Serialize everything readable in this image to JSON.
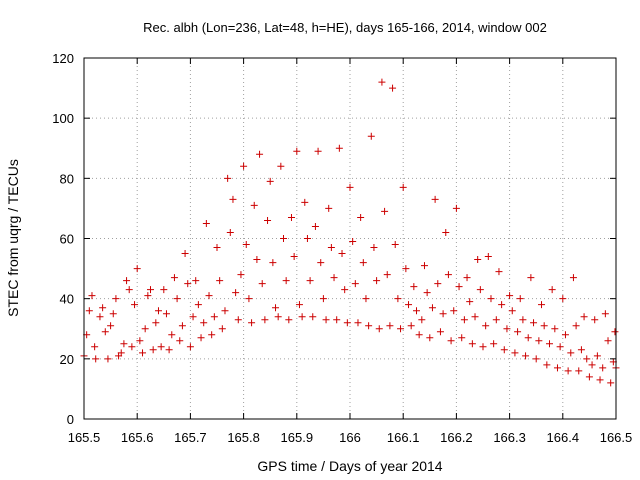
{
  "chart_data": {
    "type": "scatter",
    "title": "Rec. albh (Lon=236, Lat=48, h=HE), days 165-166, 2014, window 002",
    "xlabel": "GPS time / Days of year 2014",
    "ylabel": "STEC from uqrg / TECUs",
    "xlim": [
      165.5,
      166.5
    ],
    "ylim": [
      0,
      120
    ],
    "grid": true,
    "marker": "plus",
    "color": "#cc0000",
    "x_ticks": [
      {
        "value": 165.5,
        "label": "165.5"
      },
      {
        "value": 165.6,
        "label": "165.6"
      },
      {
        "value": 165.7,
        "label": "165.7"
      },
      {
        "value": 165.8,
        "label": "165.8"
      },
      {
        "value": 165.9,
        "label": "165.9"
      },
      {
        "value": 166.0,
        "label": "166"
      },
      {
        "value": 166.1,
        "label": "166.1"
      },
      {
        "value": 166.2,
        "label": "166.2"
      },
      {
        "value": 166.3,
        "label": "166.3"
      },
      {
        "value": 166.4,
        "label": "166.4"
      },
      {
        "value": 166.5,
        "label": "166.5"
      }
    ],
    "y_ticks": [
      {
        "value": 0,
        "label": "0"
      },
      {
        "value": 20,
        "label": "20"
      },
      {
        "value": 40,
        "label": "40"
      },
      {
        "value": 60,
        "label": "60"
      },
      {
        "value": 80,
        "label": "80"
      },
      {
        "value": 100,
        "label": "100"
      },
      {
        "value": 120,
        "label": "120"
      }
    ],
    "points": [
      [
        165.5,
        21
      ],
      [
        165.505,
        28
      ],
      [
        165.51,
        36
      ],
      [
        165.515,
        41
      ],
      [
        165.52,
        24
      ],
      [
        165.522,
        20
      ],
      [
        165.53,
        34
      ],
      [
        165.535,
        37
      ],
      [
        165.54,
        29
      ],
      [
        165.545,
        20
      ],
      [
        165.55,
        31
      ],
      [
        165.555,
        35
      ],
      [
        165.56,
        40
      ],
      [
        165.565,
        21
      ],
      [
        165.57,
        22
      ],
      [
        165.575,
        25
      ],
      [
        165.58,
        46
      ],
      [
        165.585,
        43
      ],
      [
        165.59,
        24
      ],
      [
        165.595,
        38
      ],
      [
        165.6,
        50
      ],
      [
        165.605,
        26
      ],
      [
        165.61,
        22
      ],
      [
        165.615,
        30
      ],
      [
        165.62,
        41
      ],
      [
        165.625,
        43
      ],
      [
        165.63,
        23
      ],
      [
        165.635,
        32
      ],
      [
        165.64,
        36
      ],
      [
        165.645,
        24
      ],
      [
        165.65,
        43
      ],
      [
        165.655,
        35
      ],
      [
        165.66,
        23
      ],
      [
        165.665,
        28
      ],
      [
        165.67,
        47
      ],
      [
        165.675,
        40
      ],
      [
        165.68,
        26
      ],
      [
        165.685,
        31
      ],
      [
        165.69,
        55
      ],
      [
        165.695,
        45
      ],
      [
        165.7,
        24
      ],
      [
        165.705,
        34
      ],
      [
        165.71,
        46
      ],
      [
        165.715,
        38
      ],
      [
        165.72,
        27
      ],
      [
        165.725,
        32
      ],
      [
        165.73,
        65
      ],
      [
        165.735,
        41
      ],
      [
        165.74,
        28
      ],
      [
        165.745,
        34
      ],
      [
        165.75,
        57
      ],
      [
        165.755,
        46
      ],
      [
        165.76,
        30
      ],
      [
        165.765,
        36
      ],
      [
        165.77,
        80
      ],
      [
        165.775,
        62
      ],
      [
        165.78,
        73
      ],
      [
        165.785,
        42
      ],
      [
        165.79,
        33
      ],
      [
        165.795,
        48
      ],
      [
        165.8,
        84
      ],
      [
        165.805,
        58
      ],
      [
        165.81,
        40
      ],
      [
        165.815,
        32
      ],
      [
        165.82,
        71
      ],
      [
        165.825,
        53
      ],
      [
        165.83,
        88
      ],
      [
        165.835,
        45
      ],
      [
        165.84,
        33
      ],
      [
        165.845,
        66
      ],
      [
        165.85,
        79
      ],
      [
        165.855,
        52
      ],
      [
        165.86,
        37
      ],
      [
        165.865,
        34
      ],
      [
        165.87,
        84
      ],
      [
        165.875,
        60
      ],
      [
        165.88,
        46
      ],
      [
        165.885,
        33
      ],
      [
        165.89,
        67
      ],
      [
        165.895,
        54
      ],
      [
        165.9,
        89
      ],
      [
        165.905,
        38
      ],
      [
        165.91,
        34
      ],
      [
        165.915,
        72
      ],
      [
        165.92,
        60
      ],
      [
        165.925,
        46
      ],
      [
        165.93,
        34
      ],
      [
        165.935,
        64
      ],
      [
        165.94,
        89
      ],
      [
        165.945,
        52
      ],
      [
        165.95,
        40
      ],
      [
        165.955,
        33
      ],
      [
        165.96,
        70
      ],
      [
        165.965,
        57
      ],
      [
        165.97,
        47
      ],
      [
        165.975,
        33
      ],
      [
        165.98,
        90
      ],
      [
        165.985,
        55
      ],
      [
        165.99,
        43
      ],
      [
        165.995,
        32
      ],
      [
        166.0,
        77
      ],
      [
        166.005,
        59
      ],
      [
        166.01,
        45
      ],
      [
        166.015,
        32
      ],
      [
        166.02,
        67
      ],
      [
        166.025,
        52
      ],
      [
        166.03,
        40
      ],
      [
        166.035,
        31
      ],
      [
        166.04,
        94
      ],
      [
        166.045,
        57
      ],
      [
        166.05,
        46
      ],
      [
        166.055,
        30
      ],
      [
        166.06,
        112
      ],
      [
        166.065,
        69
      ],
      [
        166.07,
        48
      ],
      [
        166.075,
        31
      ],
      [
        166.08,
        110
      ],
      [
        166.085,
        58
      ],
      [
        166.09,
        40
      ],
      [
        166.095,
        30
      ],
      [
        166.1,
        77
      ],
      [
        166.105,
        50
      ],
      [
        166.11,
        38
      ],
      [
        166.115,
        31
      ],
      [
        166.12,
        44
      ],
      [
        166.125,
        36
      ],
      [
        166.13,
        28
      ],
      [
        166.135,
        33
      ],
      [
        166.14,
        51
      ],
      [
        166.145,
        42
      ],
      [
        166.15,
        27
      ],
      [
        166.155,
        37
      ],
      [
        166.16,
        73
      ],
      [
        166.165,
        45
      ],
      [
        166.17,
        29
      ],
      [
        166.175,
        35
      ],
      [
        166.18,
        62
      ],
      [
        166.185,
        48
      ],
      [
        166.19,
        26
      ],
      [
        166.195,
        36
      ],
      [
        166.2,
        70
      ],
      [
        166.205,
        44
      ],
      [
        166.21,
        27
      ],
      [
        166.215,
        33
      ],
      [
        166.22,
        47
      ],
      [
        166.225,
        39
      ],
      [
        166.23,
        25
      ],
      [
        166.235,
        34
      ],
      [
        166.24,
        53
      ],
      [
        166.245,
        43
      ],
      [
        166.25,
        24
      ],
      [
        166.255,
        31
      ],
      [
        166.26,
        54
      ],
      [
        166.265,
        40
      ],
      [
        166.27,
        25
      ],
      [
        166.275,
        33
      ],
      [
        166.28,
        49
      ],
      [
        166.285,
        38
      ],
      [
        166.29,
        23
      ],
      [
        166.295,
        30
      ],
      [
        166.3,
        41
      ],
      [
        166.305,
        36
      ],
      [
        166.31,
        22
      ],
      [
        166.315,
        29
      ],
      [
        166.32,
        40
      ],
      [
        166.325,
        33
      ],
      [
        166.33,
        21
      ],
      [
        166.335,
        27
      ],
      [
        166.34,
        47
      ],
      [
        166.345,
        32
      ],
      [
        166.35,
        20
      ],
      [
        166.355,
        26
      ],
      [
        166.36,
        38
      ],
      [
        166.365,
        31
      ],
      [
        166.37,
        18
      ],
      [
        166.375,
        25
      ],
      [
        166.38,
        43
      ],
      [
        166.385,
        30
      ],
      [
        166.39,
        17
      ],
      [
        166.395,
        24
      ],
      [
        166.4,
        40
      ],
      [
        166.405,
        28
      ],
      [
        166.41,
        16
      ],
      [
        166.415,
        22
      ],
      [
        166.42,
        47
      ],
      [
        166.425,
        31
      ],
      [
        166.43,
        16
      ],
      [
        166.435,
        23
      ],
      [
        166.44,
        34
      ],
      [
        166.445,
        20
      ],
      [
        166.45,
        14
      ],
      [
        166.455,
        18
      ],
      [
        166.46,
        33
      ],
      [
        166.465,
        21
      ],
      [
        166.47,
        13
      ],
      [
        166.475,
        17
      ],
      [
        166.48,
        35
      ],
      [
        166.485,
        26
      ],
      [
        166.49,
        12
      ],
      [
        166.495,
        19
      ],
      [
        166.498,
        29
      ],
      [
        166.5,
        17
      ]
    ]
  }
}
